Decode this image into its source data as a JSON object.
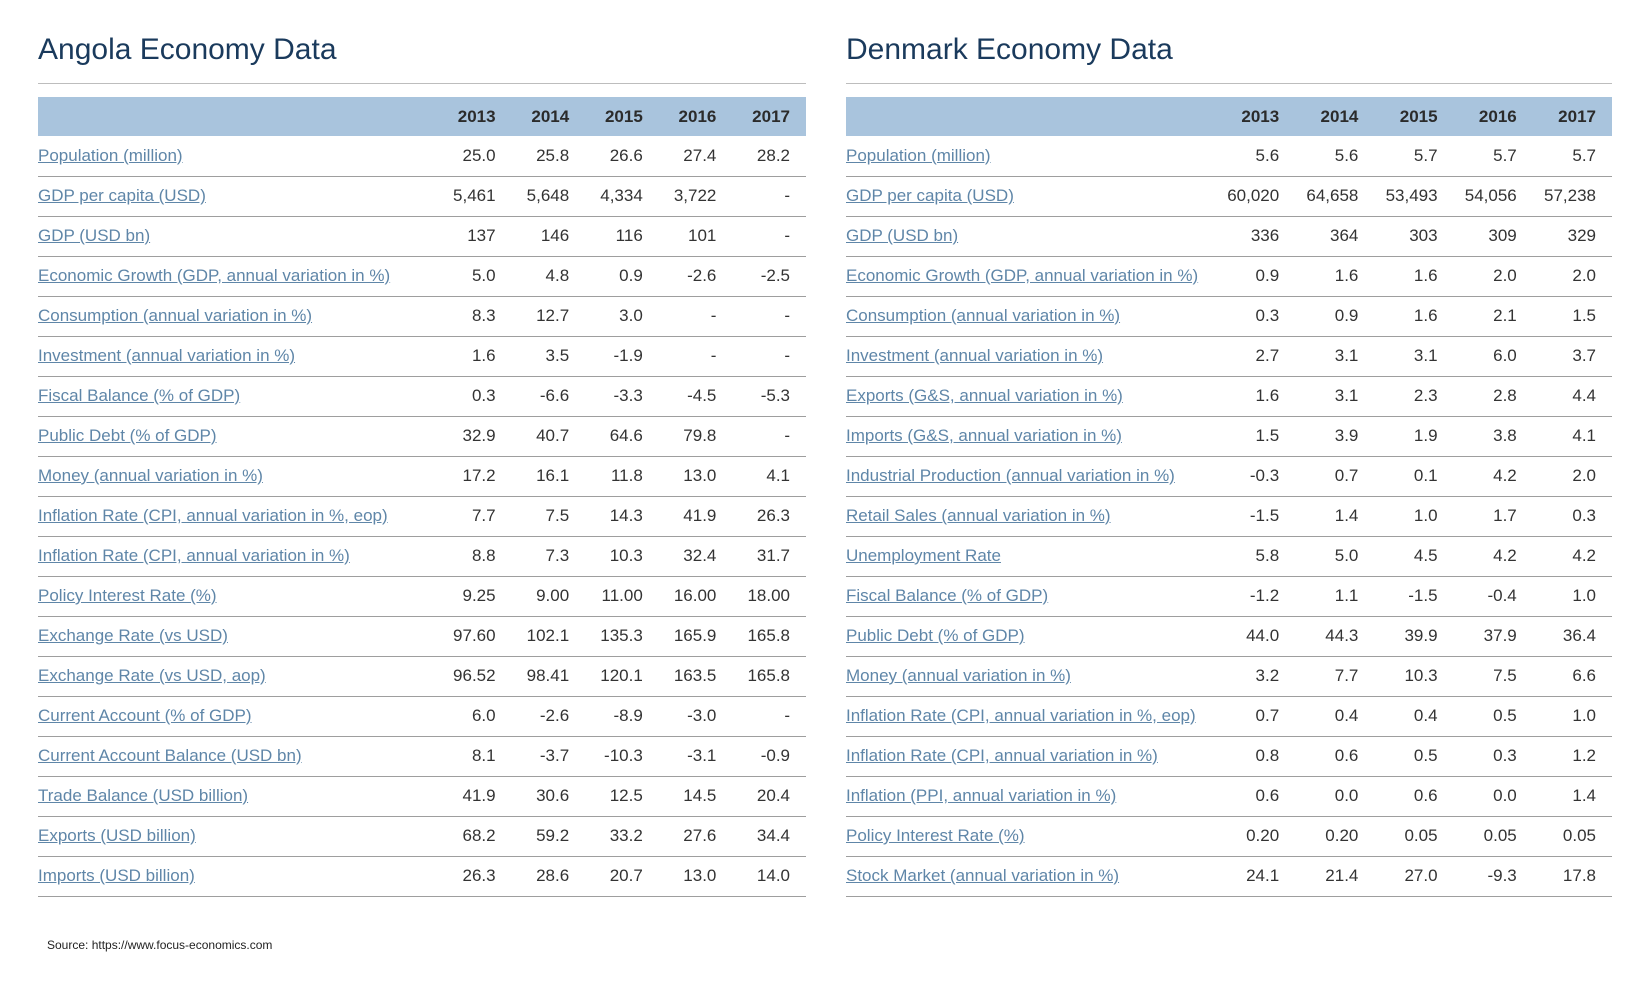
{
  "angola": {
    "title": "Angola Economy Data",
    "years": [
      "2013",
      "2014",
      "2015",
      "2016",
      "2017"
    ],
    "rows": [
      {
        "label": "Population (million)",
        "values": [
          "25.0",
          "25.8",
          "26.6",
          "27.4",
          "28.2"
        ]
      },
      {
        "label": "GDP per capita (USD)",
        "values": [
          "5,461",
          "5,648",
          "4,334",
          "3,722",
          "-"
        ]
      },
      {
        "label": "GDP (USD bn)",
        "values": [
          "137",
          "146",
          "116",
          "101",
          "-"
        ]
      },
      {
        "label": "Economic Growth (GDP, annual variation in %)",
        "values": [
          "5.0",
          "4.8",
          "0.9",
          "-2.6",
          "-2.5"
        ]
      },
      {
        "label": "Consumption (annual variation in %)",
        "values": [
          "8.3",
          "12.7",
          "3.0",
          "-",
          "-"
        ]
      },
      {
        "label": "Investment (annual variation in %)",
        "values": [
          "1.6",
          "3.5",
          "-1.9",
          "-",
          "-"
        ]
      },
      {
        "label": "Fiscal Balance (% of GDP)",
        "values": [
          "0.3",
          "-6.6",
          "-3.3",
          "-4.5",
          "-5.3"
        ]
      },
      {
        "label": "Public Debt (% of GDP)",
        "values": [
          "32.9",
          "40.7",
          "64.6",
          "79.8",
          "-"
        ]
      },
      {
        "label": "Money (annual variation in %)",
        "values": [
          "17.2",
          "16.1",
          "11.8",
          "13.0",
          "4.1"
        ]
      },
      {
        "label": "Inflation Rate (CPI, annual variation in %, eop)",
        "values": [
          "7.7",
          "7.5",
          "14.3",
          "41.9",
          "26.3"
        ]
      },
      {
        "label": "Inflation Rate (CPI, annual variation in %)",
        "values": [
          "8.8",
          "7.3",
          "10.3",
          "32.4",
          "31.7"
        ]
      },
      {
        "label": "Policy Interest Rate (%)",
        "values": [
          "9.25",
          "9.00",
          "11.00",
          "16.00",
          "18.00"
        ]
      },
      {
        "label": "Exchange Rate (vs USD)",
        "values": [
          "97.60",
          "102.1",
          "135.3",
          "165.9",
          "165.8"
        ]
      },
      {
        "label": "Exchange Rate (vs USD, aop)",
        "values": [
          "96.52",
          "98.41",
          "120.1",
          "163.5",
          "165.8"
        ]
      },
      {
        "label": "Current Account (% of GDP)",
        "values": [
          "6.0",
          "-2.6",
          "-8.9",
          "-3.0",
          "-"
        ]
      },
      {
        "label": "Current Account Balance (USD bn)",
        "values": [
          "8.1",
          "-3.7",
          "-10.3",
          "-3.1",
          "-0.9"
        ]
      },
      {
        "label": "Trade Balance (USD billion)",
        "values": [
          "41.9",
          "30.6",
          "12.5",
          "14.5",
          "20.4"
        ]
      },
      {
        "label": "Exports (USD billion)",
        "values": [
          "68.2",
          "59.2",
          "33.2",
          "27.6",
          "34.4"
        ]
      },
      {
        "label": "Imports (USD billion)",
        "values": [
          "26.3",
          "28.6",
          "20.7",
          "13.0",
          "14.0"
        ]
      }
    ]
  },
  "denmark": {
    "title": "Denmark Economy Data",
    "years": [
      "2013",
      "2014",
      "2015",
      "2016",
      "2017"
    ],
    "rows": [
      {
        "label": "Population (million)",
        "values": [
          "5.6",
          "5.6",
          "5.7",
          "5.7",
          "5.7"
        ]
      },
      {
        "label": "GDP per capita (USD)",
        "values": [
          "60,020",
          "64,658",
          "53,493",
          "54,056",
          "57,238"
        ]
      },
      {
        "label": "GDP (USD bn)",
        "values": [
          "336",
          "364",
          "303",
          "309",
          "329"
        ]
      },
      {
        "label": "Economic Growth (GDP, annual variation in %)",
        "values": [
          "0.9",
          "1.6",
          "1.6",
          "2.0",
          "2.0"
        ]
      },
      {
        "label": "Consumption (annual variation in %)",
        "values": [
          "0.3",
          "0.9",
          "1.6",
          "2.1",
          "1.5"
        ]
      },
      {
        "label": "Investment (annual variation in %)",
        "values": [
          "2.7",
          "3.1",
          "3.1",
          "6.0",
          "3.7"
        ]
      },
      {
        "label": "Exports (G&S, annual variation in %)",
        "values": [
          "1.6",
          "3.1",
          "2.3",
          "2.8",
          "4.4"
        ]
      },
      {
        "label": "Imports (G&S, annual variation in %)",
        "values": [
          "1.5",
          "3.9",
          "1.9",
          "3.8",
          "4.1"
        ]
      },
      {
        "label": "Industrial Production (annual variation in %)",
        "values": [
          "-0.3",
          "0.7",
          "0.1",
          "4.2",
          "2.0"
        ]
      },
      {
        "label": "Retail Sales (annual variation in %)",
        "values": [
          "-1.5",
          "1.4",
          "1.0",
          "1.7",
          "0.3"
        ]
      },
      {
        "label": "Unemployment Rate",
        "values": [
          "5.8",
          "5.0",
          "4.5",
          "4.2",
          "4.2"
        ]
      },
      {
        "label": "Fiscal Balance (% of GDP)",
        "values": [
          "-1.2",
          "1.1",
          "-1.5",
          "-0.4",
          "1.0"
        ]
      },
      {
        "label": "Public Debt (% of GDP)",
        "values": [
          "44.0",
          "44.3",
          "39.9",
          "37.9",
          "36.4"
        ]
      },
      {
        "label": "Money (annual variation in %)",
        "values": [
          "3.2",
          "7.7",
          "10.3",
          "7.5",
          "6.6"
        ]
      },
      {
        "label": "Inflation Rate (CPI, annual variation in %, eop)",
        "values": [
          "0.7",
          "0.4",
          "0.4",
          "0.5",
          "1.0"
        ]
      },
      {
        "label": "Inflation Rate (CPI, annual variation in %)",
        "values": [
          "0.8",
          "0.6",
          "0.5",
          "0.3",
          "1.2"
        ]
      },
      {
        "label": "Inflation (PPI, annual variation in %)",
        "values": [
          "0.6",
          "0.0",
          "0.6",
          "0.0",
          "1.4"
        ]
      },
      {
        "label": "Policy Interest Rate (%)",
        "values": [
          "0.20",
          "0.20",
          "0.05",
          "0.05",
          "0.05"
        ]
      },
      {
        "label": "Stock Market (annual variation in %)",
        "values": [
          "24.1",
          "21.4",
          "27.0",
          "-9.3",
          "17.8"
        ]
      }
    ]
  },
  "source": "Source: https://www.focus-economics.com"
}
